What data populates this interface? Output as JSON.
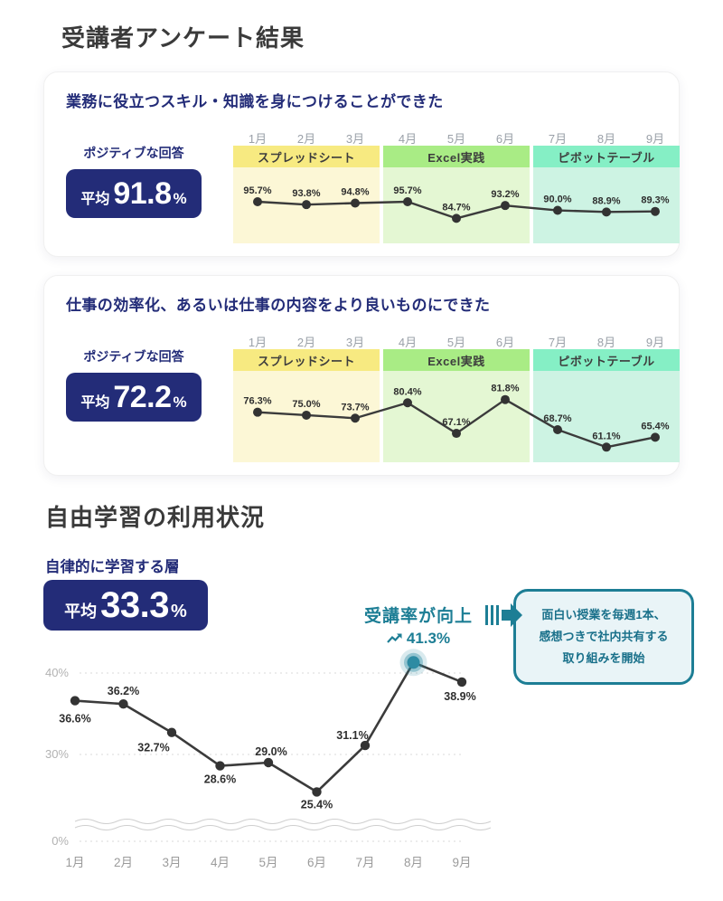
{
  "colors": {
    "navy": "#232c78",
    "teal_accent": "#1d7e95",
    "line": "#3b3b3b",
    "highlight_dot": "#2d8ba3",
    "phase_yellow_header": "#f7ea81",
    "phase_yellow_body": "#fcf7d6",
    "phase_green_header": "#a9ec85",
    "phase_green_body": "#e4f7d3",
    "phase_mint_header": "#85efc5",
    "phase_mint_body": "#cdf3e3"
  },
  "header": {
    "title": "受講者アンケート結果"
  },
  "survey_cards": [
    {
      "title": "業務に役立つスキル・知識を身につけることができた",
      "badge": {
        "label": "ポジティブな回答",
        "prefix": "平均",
        "value": "91.8",
        "unit": "%"
      }
    },
    {
      "title": "仕事の効率化、あるいは仕事の内容をより良いものにできた",
      "badge": {
        "label": "ポジティブな回答",
        "prefix": "平均",
        "value": "72.2",
        "unit": "%"
      }
    }
  ],
  "free_learning": {
    "title": "自由学習の利用状況",
    "badge": {
      "label": "自律的に学習する層",
      "prefix": "平均",
      "value": "33.3",
      "unit": "%"
    },
    "annotation": {
      "label": "受講率が向上",
      "value": "41.3%",
      "icon": "trend-up-icon"
    },
    "callout": {
      "lines": [
        "面白い授業を毎週1本、",
        "感想つきで社内共有する",
        "取り組みを開始"
      ]
    }
  },
  "chart_data": [
    {
      "type": "line",
      "title": "業務に役立つスキル・知識を身につけることができた",
      "categories": [
        "1月",
        "2月",
        "3月",
        "4月",
        "5月",
        "6月",
        "7月",
        "8月",
        "9月"
      ],
      "values": [
        95.7,
        93.8,
        94.8,
        95.7,
        84.7,
        93.2,
        90.0,
        88.9,
        89.3
      ],
      "unit": "%",
      "average": 91.8,
      "value_labels": true,
      "legend_position": "none",
      "phases": [
        {
          "label": "スプレッドシート",
          "months": [
            "1月",
            "2月",
            "3月"
          ],
          "header_color": "#f7ea81",
          "body_color": "#fcf7d6"
        },
        {
          "label": "Excel実践",
          "months": [
            "4月",
            "5月",
            "6月"
          ],
          "header_color": "#a9ec85",
          "body_color": "#e4f7d3"
        },
        {
          "label": "ピボットテーブル",
          "months": [
            "7月",
            "8月",
            "9月"
          ],
          "header_color": "#85efc5",
          "body_color": "#cdf3e3"
        }
      ]
    },
    {
      "type": "line",
      "title": "仕事の効率化、あるいは仕事の内容をより良いものにできた",
      "categories": [
        "1月",
        "2月",
        "3月",
        "4月",
        "5月",
        "6月",
        "7月",
        "8月",
        "9月"
      ],
      "values": [
        76.3,
        75.0,
        73.7,
        80.4,
        67.1,
        81.8,
        68.7,
        61.1,
        65.4
      ],
      "unit": "%",
      "average": 72.2,
      "value_labels": true,
      "legend_position": "none",
      "phases": [
        {
          "label": "スプレッドシート",
          "months": [
            "1月",
            "2月",
            "3月"
          ],
          "header_color": "#f7ea81",
          "body_color": "#fcf7d6"
        },
        {
          "label": "Excel実践",
          "months": [
            "4月",
            "5月",
            "6月"
          ],
          "header_color": "#a9ec85",
          "body_color": "#e4f7d3"
        },
        {
          "label": "ピボットテーブル",
          "months": [
            "7月",
            "8月",
            "9月"
          ],
          "header_color": "#85efc5",
          "body_color": "#cdf3e3"
        }
      ]
    },
    {
      "type": "line",
      "title": "自由学習の利用状況",
      "categories": [
        "1月",
        "2月",
        "3月",
        "4月",
        "5月",
        "6月",
        "7月",
        "8月",
        "9月"
      ],
      "values": [
        36.6,
        36.2,
        32.7,
        28.6,
        29.0,
        25.4,
        31.1,
        41.3,
        38.9
      ],
      "unit": "%",
      "average": 33.3,
      "yticks": [
        "40%",
        "30%",
        "0%"
      ],
      "axis_break": true,
      "grid": "dashed-horizontal",
      "value_labels": true,
      "highlight": {
        "index": 7,
        "value": 41.3,
        "label": "受講率が向上"
      },
      "line_color": "#3b3b3b",
      "highlight_color": "#2d8ba3"
    }
  ]
}
